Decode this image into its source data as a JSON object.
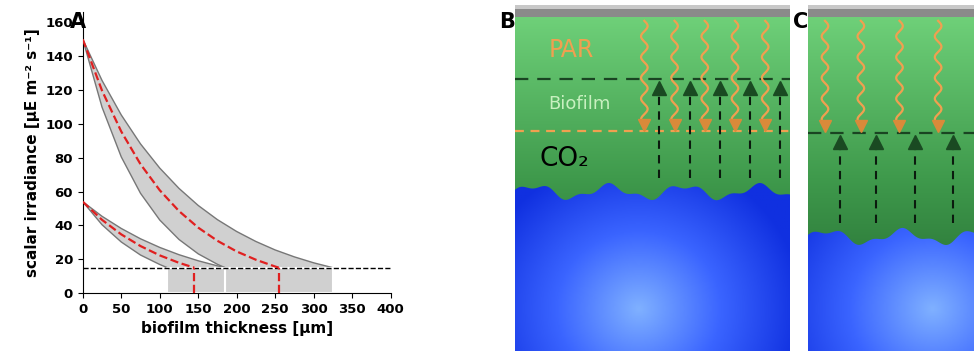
{
  "chart_data": {
    "type": "line",
    "panel_label": "A",
    "x_label": "biofilm thickness [µm]",
    "y_label": "scalar irradiance [µE m⁻² s⁻¹]",
    "xlim": [
      0,
      400
    ],
    "xticks": [
      0,
      50,
      100,
      150,
      200,
      250,
      300,
      350,
      400
    ],
    "ylim": [
      0,
      166
    ],
    "yticks": [
      0,
      20,
      40,
      60,
      80,
      100,
      120,
      140,
      160
    ],
    "bands": [
      {
        "color": "#d0d0d0",
        "upper": {
          "x": [
            0,
            25,
            50,
            75,
            100,
            125,
            150,
            175,
            200,
            225,
            250,
            275,
            300,
            325
          ],
          "values": [
            150,
            125.7,
            105.3,
            88.2,
            73.9,
            61.9,
            51.8,
            43.4,
            36.4,
            30.5,
            25.5,
            21.4,
            17.9,
            15
          ]
        },
        "lower": {
          "x": [
            0,
            25,
            50,
            75,
            100,
            125,
            150,
            175,
            185
          ],
          "values": [
            150,
            109.9,
            80.5,
            59.0,
            43.2,
            31.7,
            23.2,
            17.0,
            15
          ]
        },
        "center": {
          "x": [
            0,
            25,
            50,
            75,
            100,
            125,
            150,
            175,
            200,
            225,
            250,
            255
          ],
          "values": [
            150,
            119.7,
            95.5,
            76.2,
            60.8,
            48.5,
            38.7,
            30.9,
            24.6,
            19.7,
            15.7,
            15
          ],
          "color": "#e02020",
          "line_style": "dashed"
        }
      },
      {
        "color": "#d0d0d0",
        "upper": {
          "x": [
            0,
            25,
            50,
            75,
            100,
            125,
            150,
            175,
            185
          ],
          "values": [
            54,
            45.4,
            38.2,
            32.1,
            27.0,
            22.7,
            19.1,
            16.1,
            15
          ]
        },
        "lower": {
          "x": [
            0,
            25,
            50,
            75,
            100,
            110
          ],
          "values": [
            54,
            40.4,
            30.2,
            22.5,
            16.9,
            15
          ]
        },
        "center": {
          "x": [
            0,
            25,
            50,
            75,
            100,
            125,
            145
          ],
          "values": [
            54,
            43.3,
            34.7,
            27.8,
            22.3,
            17.9,
            15
          ],
          "color": "#e02020",
          "line_style": "dashed"
        }
      }
    ],
    "threshold": {
      "y": 15,
      "color": "#000000",
      "line_style": "dashed"
    }
  },
  "diagrams": [
    {
      "label": "B",
      "light": "PAR",
      "layer": "Biofilm",
      "gas": "CO₂"
    },
    {
      "label": "C"
    }
  ]
}
